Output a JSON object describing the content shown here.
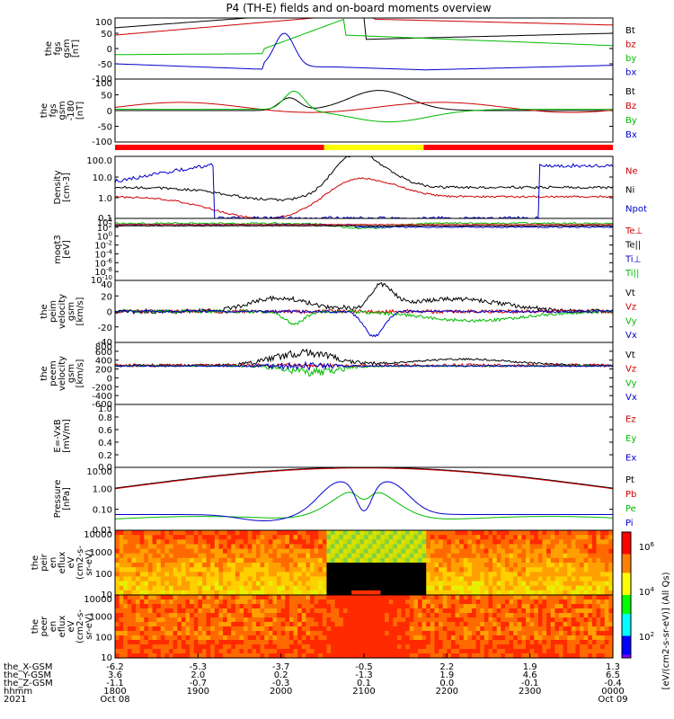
{
  "title": "P4 (TH-E) fields and on-board moments overview",
  "chart_data": {
    "type": "line",
    "x_range": [
      "2021-10-08 18:00",
      "2021-10-09 00:00"
    ],
    "panels": [
      {
        "ylabel": [
          "the",
          "fgs",
          "gsm",
          "[nT]"
        ],
        "yticks": [
          "100",
          "50",
          "0",
          "-50",
          "-100"
        ],
        "legend": [
          {
            "name": "Bt",
            "color": "#000000"
          },
          {
            "name": "bz",
            "color": "#cc0000"
          },
          {
            "name": "by",
            "color": "#00bb00"
          },
          {
            "name": "bx",
            "color": "#0000cc"
          }
        ]
      },
      {
        "ylabel": [
          "the",
          "fgs",
          "gsm",
          "-180",
          "[nT]"
        ],
        "yticks": [
          "100",
          "50",
          "0",
          "-50",
          "-100"
        ],
        "legend": [
          {
            "name": "Bt",
            "color": "#000000"
          },
          {
            "name": "Bz",
            "color": "#cc0000"
          },
          {
            "name": "By",
            "color": "#00bb00"
          },
          {
            "name": "Bx",
            "color": "#0000cc"
          }
        ]
      },
      {
        "ylabel": [
          "Density",
          "[cm-3]"
        ],
        "yticks": [
          "100.0",
          "10.0",
          "1.0",
          "0.1"
        ],
        "legend": [
          {
            "name": "Ne",
            "color": "#cc0000"
          },
          {
            "name": "Ni",
            "color": "#000000"
          },
          {
            "name": "Npot",
            "color": "#0000cc"
          }
        ]
      },
      {
        "ylabel": [
          "moqt3",
          "[eV]"
        ],
        "yticks": [
          "10^4",
          "10^2",
          "10^0",
          "10^-2",
          "10^-4",
          "10^-6",
          "10^-8",
          "10^-10"
        ],
        "legend": [
          {
            "name": "Te⊥",
            "color": "#cc0000"
          },
          {
            "name": "Te||",
            "color": "#000000"
          },
          {
            "name": "Ti⊥",
            "color": "#0000cc"
          },
          {
            "name": "Ti||",
            "color": "#00bb00"
          }
        ]
      },
      {
        "ylabel": [
          "the",
          "peim",
          "velocity",
          "gsm",
          "[km/s]"
        ],
        "yticks": [
          "40",
          "20",
          "0",
          "-20",
          "-40"
        ],
        "legend": [
          {
            "name": "Vt",
            "color": "#000000"
          },
          {
            "name": "Vz",
            "color": "#cc0000"
          },
          {
            "name": "Vy",
            "color": "#00bb00"
          },
          {
            "name": "Vx",
            "color": "#0000cc"
          }
        ]
      },
      {
        "ylabel": [
          "the",
          "peem",
          "velocity",
          "gsm",
          "[km/s]"
        ],
        "yticks": [
          "800",
          "600",
          "400",
          "200",
          "0",
          "-200",
          "-400",
          "-600"
        ],
        "legend": [
          {
            "name": "Vt",
            "color": "#000000"
          },
          {
            "name": "Vz",
            "color": "#cc0000"
          },
          {
            "name": "Vy",
            "color": "#00bb00"
          },
          {
            "name": "Vx",
            "color": "#0000cc"
          }
        ]
      },
      {
        "ylabel": [
          "E=-VxB",
          "[mV/m]"
        ],
        "yticks": [
          "1.0",
          "0.8",
          "0.6",
          "0.4",
          "0.2",
          "0.0"
        ],
        "legend": [
          {
            "name": "Ez",
            "color": "#cc0000"
          },
          {
            "name": "Ey",
            "color": "#00bb00"
          },
          {
            "name": "Ex",
            "color": "#0000cc"
          }
        ]
      },
      {
        "ylabel": [
          "Pressure",
          "[nPa]"
        ],
        "yticks": [
          "10.00",
          "1.00",
          "0.10",
          "0.01"
        ],
        "legend": [
          {
            "name": "Pt",
            "color": "#000000"
          },
          {
            "name": "Pb",
            "color": "#cc0000"
          },
          {
            "name": "Pe",
            "color": "#00bb00"
          },
          {
            "name": "Pi",
            "color": "#0000cc"
          }
        ]
      },
      {
        "ylabel": [
          "the",
          "peir",
          "en",
          "eflux",
          "eV",
          "(cm2-s-",
          "sr-eV)"
        ],
        "yticks": [
          "10000",
          "1000",
          "100",
          "10"
        ]
      },
      {
        "ylabel": [
          "the",
          "peer",
          "en",
          "eflux",
          "eV",
          "(cm2-s-",
          "sr-eV)"
        ],
        "yticks": [
          "10000",
          "1000",
          "100",
          "10"
        ]
      }
    ],
    "colorbar": {
      "label": "[eV/(cm2-s-sr-eV)] (All Qs)",
      "ticks": [
        "10^6",
        "10^4",
        "10^2"
      ]
    },
    "time_axis": {
      "row_labels": [
        "the_X-GSM",
        "the_Y-GSM",
        "the_Z-GSM",
        "hhmm",
        "2021"
      ],
      "columns": [
        {
          "values": [
            "-6.2",
            "3.6",
            "-1.1",
            "1800",
            "Oct 08"
          ]
        },
        {
          "values": [
            "-5.3",
            "2.0",
            "-0.7",
            "1900",
            ""
          ]
        },
        {
          "values": [
            "-3.7",
            "0.2",
            "-0.3",
            "2000",
            ""
          ]
        },
        {
          "values": [
            "-0.5",
            "-1.3",
            "0.1",
            "2100",
            ""
          ]
        },
        {
          "values": [
            "2.2",
            "1.9",
            "0.0",
            "2200",
            ""
          ]
        },
        {
          "values": [
            "1.9",
            "4.6",
            "-0.1",
            "2300",
            ""
          ]
        },
        {
          "values": [
            "1.3",
            "6.5",
            "-0.4",
            "0000",
            "Oct 09"
          ]
        }
      ]
    }
  }
}
